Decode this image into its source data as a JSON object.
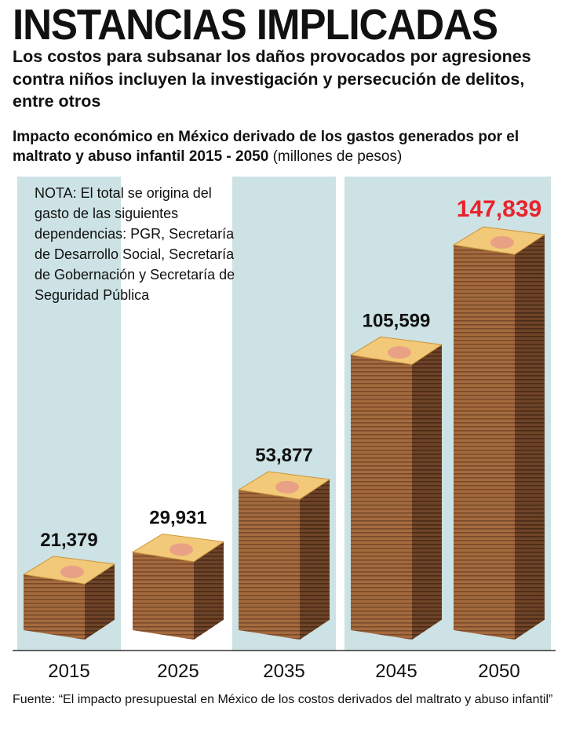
{
  "title": "INSTANCIAS IMPLICADAS",
  "deck": "Los costos para subsanar los daños provocados por agresiones contra niños incluyen la investigación y persecución de delitos, entre otros",
  "subtitle_main": "Impacto económico en México derivado de los gastos generados por el maltrato y abuso infantil 2015 - 2050",
  "subtitle_unit": "(millones de pesos)",
  "note": "NOTA: El total se origina del gasto de las siguientes dependencias: PGR, Secretaría de Desarrollo Social, Secretaría de Gobernación y Secretaría de Seguridad Pública",
  "source": "Fuente: “El impacto presupuestal en México de los costos derivados del maltrato y abuso infantil”",
  "colors": {
    "band": "#cde2e4",
    "stack_top": "#f2c978",
    "stack_front": "#a46a3e",
    "stack_side": "#6e4327",
    "highlight_label": "#e8232d",
    "label": "#111111"
  },
  "chart_data": {
    "type": "bar",
    "categories": [
      "2015",
      "2025",
      "2035",
      "2045",
      "2050"
    ],
    "values": [
      21379,
      29931,
      53877,
      105599,
      147839
    ],
    "value_labels": [
      "21,379",
      "29,931",
      "53,877",
      "105,599",
      "147,839"
    ],
    "title": "Impacto económico en México derivado de los gastos generados por el maltrato y abuso infantil 2015 - 2050",
    "ylabel": "millones de pesos",
    "xlabel": "",
    "ylim": [
      0,
      150000
    ],
    "highlight_index": 4,
    "grid": false,
    "axis_visible": false
  }
}
